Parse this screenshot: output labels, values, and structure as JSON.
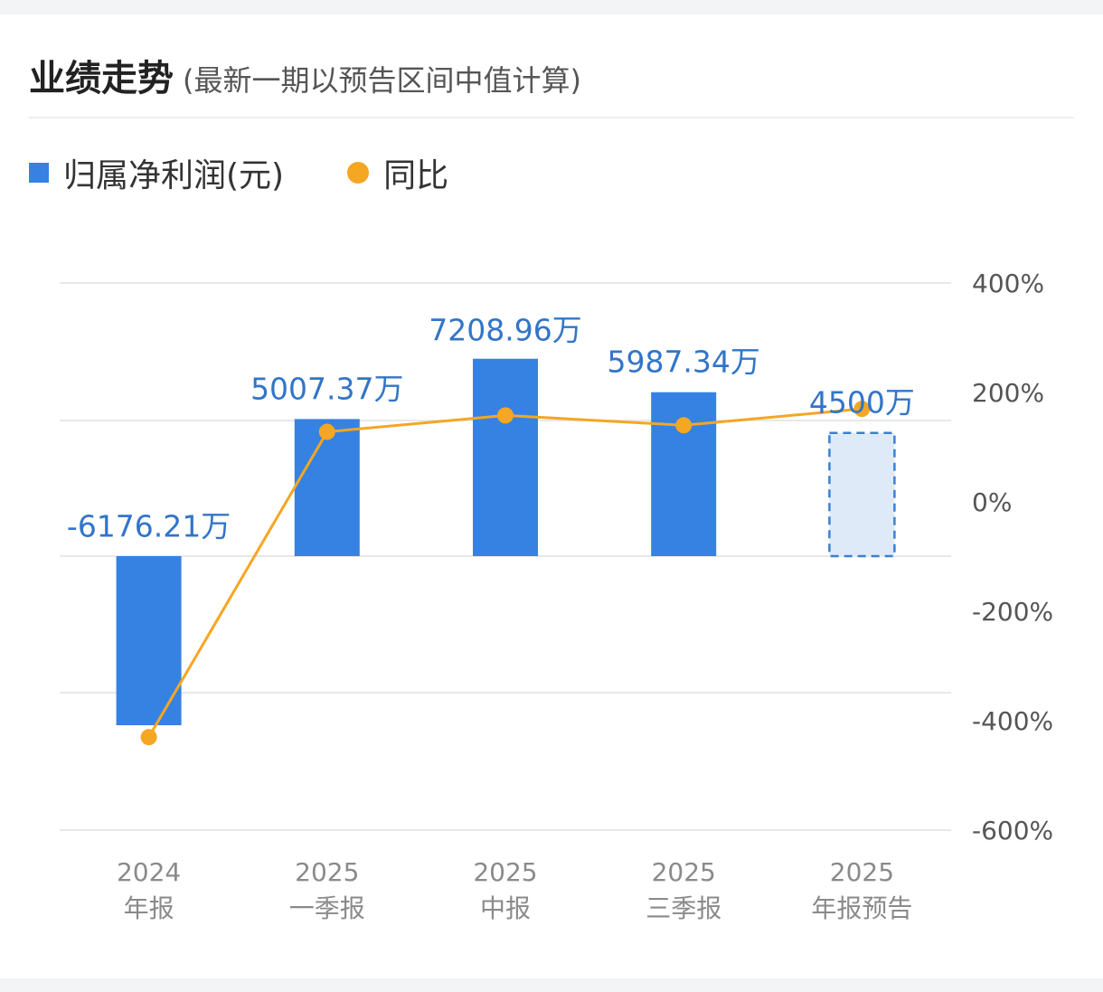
{
  "header": {
    "title": "业绩走势",
    "subtitle": "(最新一期以预告区间中值计算)"
  },
  "legend": {
    "bar_label": "归属净利润(元)",
    "line_label": "同比"
  },
  "colors": {
    "bar": "#3582e2",
    "forecast_fill": "#dfeaf8",
    "forecast_border": "#3b7fd0",
    "line": "#f5a623",
    "bar_value_label": "#3275c8",
    "tick_label": "#8a8a8a",
    "axis_label": "#555555",
    "grid": "#e8e8e8"
  },
  "chart_data": {
    "type": "bar",
    "x_ticks": [
      {
        "year": "2024",
        "period": "年报"
      },
      {
        "year": "2025",
        "period": "一季报"
      },
      {
        "year": "2025",
        "period": "中报"
      },
      {
        "year": "2025",
        "period": "三季报"
      },
      {
        "year": "2025",
        "period": "年报预告"
      }
    ],
    "series": [
      {
        "name": "归属净利润(元)",
        "type": "bar",
        "unit": "万",
        "values": [
          -6176.21,
          5007.37,
          7208.96,
          5987.34,
          4500
        ],
        "labels": [
          "-6176.21万",
          "5007.37万",
          "7208.96万",
          "5987.34万",
          "4500万"
        ],
        "forecast": [
          false,
          false,
          false,
          false,
          true
        ]
      },
      {
        "name": "同比",
        "type": "line",
        "unit": "%",
        "values": [
          -430,
          128,
          158,
          140,
          170
        ]
      }
    ],
    "right_axis": {
      "ticks": [
        "400%",
        "200%",
        "0%",
        "-200%",
        "-400%",
        "-600%"
      ],
      "range": [
        -600,
        400
      ]
    },
    "grid": true,
    "legend_position": "top-left"
  }
}
